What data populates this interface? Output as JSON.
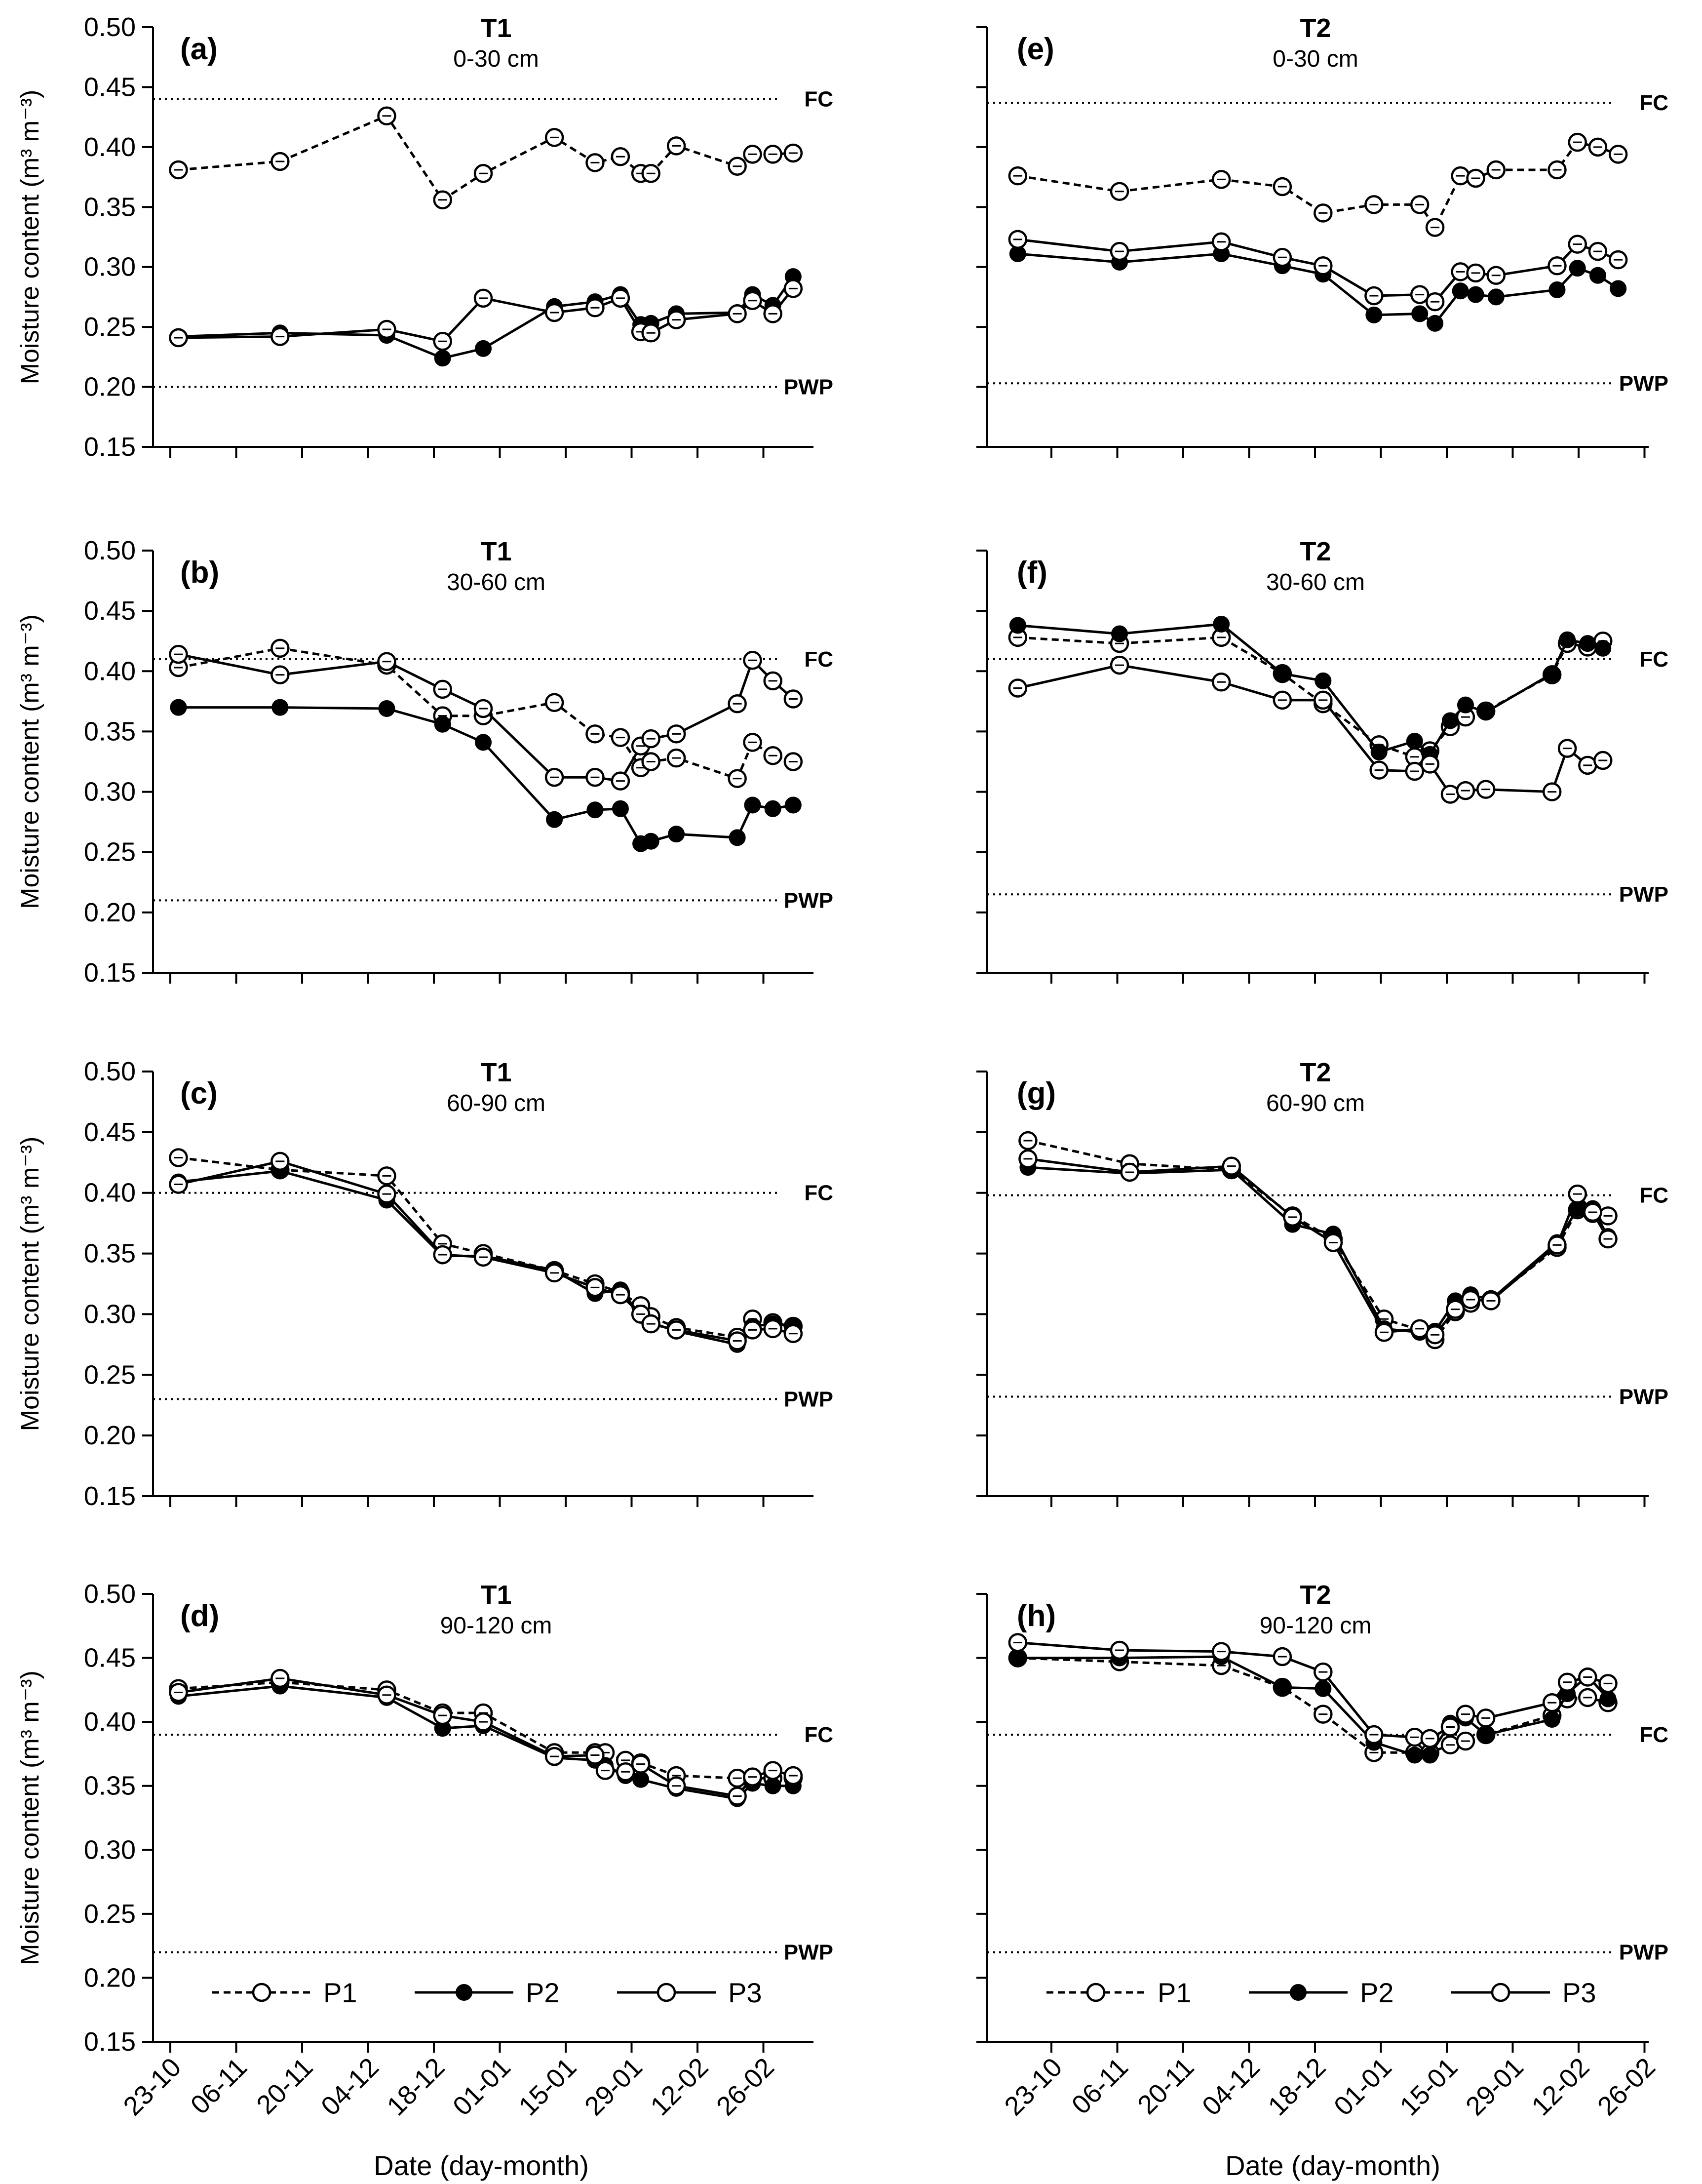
{
  "figure": {
    "y_axis_label": "Moisture content (m³ m⁻³)",
    "x_axis_label": "Date (day-month)",
    "y_ticks": [
      "0.15",
      "0.20",
      "0.25",
      "0.30",
      "0.35",
      "0.40",
      "0.45",
      "0.50"
    ],
    "x_ticks": [
      "23-10",
      "06-11",
      "20-11",
      "04-12",
      "18-12",
      "01-01",
      "15-01",
      "29-01",
      "12-02",
      "26-02"
    ],
    "legend": [
      {
        "name": "P1",
        "style": "dashed",
        "marker": "open"
      },
      {
        "name": "P2",
        "style": "solid",
        "marker": "filled"
      },
      {
        "name": "P3",
        "style": "solid",
        "marker": "open"
      }
    ]
  },
  "chart_data": [
    {
      "type": "line",
      "id": "a",
      "panel_label": "(a)",
      "title": "T1",
      "subtitle": "0-30 cm",
      "ylim": [
        0.15,
        0.5
      ],
      "fc": 0.44,
      "pwp": 0.2,
      "fc_label": "FC",
      "pwp_label": "PWP",
      "x": [
        5,
        25,
        46,
        57,
        65,
        79,
        87,
        92,
        96,
        98,
        103,
        115,
        118,
        122,
        126
      ],
      "series": [
        {
          "name": "P1",
          "values": [
            0.381,
            0.388,
            0.426,
            0.356,
            0.378,
            0.408,
            0.387,
            0.392,
            0.378,
            0.378,
            0.401,
            0.384,
            0.394,
            0.394,
            0.395
          ]
        },
        {
          "name": "P2",
          "values": [
            0.242,
            0.245,
            0.243,
            0.224,
            0.232,
            0.267,
            0.271,
            0.277,
            0.252,
            0.253,
            0.261,
            0.262,
            0.277,
            0.268,
            0.292
          ]
        },
        {
          "name": "P3",
          "values": [
            0.241,
            0.242,
            0.248,
            0.238,
            0.274,
            0.262,
            0.266,
            0.274,
            0.246,
            0.245,
            0.256,
            0.261,
            0.272,
            0.261,
            0.282
          ]
        }
      ]
    },
    {
      "type": "line",
      "id": "b",
      "panel_label": "(b)",
      "title": "T1",
      "subtitle": "30-60 cm",
      "ylim": [
        0.15,
        0.5
      ],
      "fc": 0.41,
      "pwp": 0.21,
      "fc_label": "FC",
      "pwp_label": "PWP",
      "x": [
        5,
        25,
        46,
        57,
        65,
        79,
        87,
        92,
        96,
        98,
        103,
        115,
        118,
        122,
        126
      ],
      "series": [
        {
          "name": "P1",
          "values": [
            0.403,
            0.419,
            0.405,
            0.363,
            0.363,
            0.374,
            0.348,
            0.345,
            0.32,
            0.325,
            0.328,
            0.311,
            0.341,
            0.33,
            0.325
          ]
        },
        {
          "name": "P2",
          "values": [
            0.37,
            0.37,
            0.369,
            0.356,
            0.341,
            0.277,
            0.285,
            0.286,
            0.257,
            0.259,
            0.265,
            0.262,
            0.289,
            0.286,
            0.289
          ]
        },
        {
          "name": "P3",
          "values": [
            0.414,
            0.397,
            0.408,
            0.385,
            0.369,
            0.312,
            0.312,
            0.309,
            0.338,
            0.344,
            0.348,
            0.373,
            0.409,
            0.392,
            0.377
          ]
        }
      ]
    },
    {
      "type": "line",
      "id": "c",
      "panel_label": "(c)",
      "title": "T1",
      "subtitle": "60-90 cm",
      "ylim": [
        0.15,
        0.5
      ],
      "fc": 0.4,
      "pwp": 0.23,
      "fc_label": "FC",
      "pwp_label": "PWP",
      "x": [
        5,
        25,
        46,
        57,
        65,
        79,
        87,
        92,
        96,
        98,
        103,
        115,
        118,
        122,
        126
      ],
      "series": [
        {
          "name": "P1",
          "values": [
            0.429,
            0.419,
            0.414,
            0.358,
            0.35,
            0.336,
            0.325,
            0.318,
            0.307,
            0.298,
            0.289,
            0.281,
            0.296,
            0.293,
            0.29
          ]
        },
        {
          "name": "P2",
          "values": [
            0.409,
            0.418,
            0.394,
            0.348,
            0.348,
            0.336,
            0.317,
            0.32,
            0.299,
            0.293,
            0.286,
            0.275,
            0.29,
            0.292,
            0.29
          ]
        },
        {
          "name": "P3",
          "values": [
            0.407,
            0.426,
            0.399,
            0.349,
            0.347,
            0.334,
            0.322,
            0.316,
            0.3,
            0.292,
            0.287,
            0.278,
            0.287,
            0.288,
            0.284
          ]
        }
      ]
    },
    {
      "type": "line",
      "id": "d",
      "panel_label": "(d)",
      "title": "T1",
      "subtitle": "90-120 cm",
      "ylim": [
        0.15,
        0.5
      ],
      "fc": 0.39,
      "pwp": 0.22,
      "fc_label": "FC",
      "pwp_label": "PWP",
      "x": [
        5,
        25,
        46,
        57,
        65,
        79,
        87,
        89,
        93,
        96,
        103,
        115,
        118,
        122,
        126
      ],
      "series": [
        {
          "name": "P1",
          "values": [
            0.426,
            0.431,
            0.425,
            0.407,
            0.407,
            0.376,
            0.376,
            0.376,
            0.37,
            0.368,
            0.358,
            0.356,
            0.356,
            0.356,
            0.356
          ]
        },
        {
          "name": "P2",
          "values": [
            0.42,
            0.428,
            0.419,
            0.395,
            0.397,
            0.372,
            0.37,
            0.366,
            0.358,
            0.355,
            0.348,
            0.34,
            0.352,
            0.35,
            0.35
          ]
        },
        {
          "name": "P3",
          "values": [
            0.423,
            0.434,
            0.421,
            0.405,
            0.4,
            0.373,
            0.374,
            0.362,
            0.361,
            0.367,
            0.35,
            0.342,
            0.357,
            0.362,
            0.358
          ]
        }
      ]
    },
    {
      "type": "line",
      "id": "e",
      "panel_label": "(e)",
      "title": "T2",
      "subtitle": "0-30 cm",
      "ylim": [
        0.15,
        0.5
      ],
      "fc": 0.437,
      "pwp": 0.203,
      "fc_label": "FC",
      "pwp_label": "PWP",
      "x": [
        6,
        26,
        46,
        58,
        66,
        76,
        85,
        88,
        93,
        96,
        100,
        112,
        116,
        120,
        124
      ],
      "series": [
        {
          "name": "P1",
          "values": [
            0.376,
            0.363,
            0.373,
            0.367,
            0.345,
            0.352,
            0.352,
            0.333,
            0.376,
            0.374,
            0.381,
            0.381,
            0.404,
            0.4,
            0.394
          ]
        },
        {
          "name": "P2",
          "values": [
            0.311,
            0.304,
            0.311,
            0.301,
            0.294,
            0.26,
            0.261,
            0.253,
            0.28,
            0.277,
            0.275,
            0.281,
            0.299,
            0.293,
            0.282
          ]
        },
        {
          "name": "P3",
          "values": [
            0.323,
            0.313,
            0.321,
            0.308,
            0.301,
            0.276,
            0.277,
            0.271,
            0.296,
            0.295,
            0.293,
            0.301,
            0.319,
            0.313,
            0.306
          ]
        }
      ]
    },
    {
      "type": "line",
      "id": "f",
      "panel_label": "(f)",
      "title": "T2",
      "subtitle": "30-60 cm",
      "ylim": [
        0.15,
        0.5
      ],
      "fc": 0.41,
      "pwp": 0.215,
      "fc_label": "FC",
      "pwp_label": "PWP",
      "x": [
        6,
        26,
        46,
        58,
        66,
        77,
        84,
        87,
        91,
        94,
        98,
        111,
        114,
        118,
        121
      ],
      "series": [
        {
          "name": "P1",
          "values": [
            0.428,
            0.423,
            0.428,
            0.398,
            0.373,
            0.339,
            0.329,
            0.334,
            0.354,
            0.362,
            0.367,
            0.397,
            0.423,
            0.42,
            0.425
          ]
        },
        {
          "name": "P2",
          "values": [
            0.438,
            0.431,
            0.439,
            0.398,
            0.392,
            0.333,
            0.342,
            0.331,
            0.359,
            0.372,
            0.366,
            0.398,
            0.426,
            0.423,
            0.419
          ]
        },
        {
          "name": "P3",
          "values": [
            0.386,
            0.405,
            0.391,
            0.376,
            0.376,
            0.318,
            0.317,
            0.323,
            0.298,
            0.301,
            0.302,
            0.3,
            0.336,
            0.322,
            0.326
          ]
        }
      ]
    },
    {
      "type": "line",
      "id": "g",
      "panel_label": "(g)",
      "title": "T2",
      "subtitle": "60-90 cm",
      "ylim": [
        0.15,
        0.5
      ],
      "fc": 0.398,
      "pwp": 0.232,
      "fc_label": "FC",
      "pwp_label": "PWP",
      "x": [
        8,
        28,
        48,
        60,
        68,
        78,
        85,
        88,
        92,
        95,
        99,
        112,
        116,
        119,
        122
      ],
      "series": [
        {
          "name": "P1",
          "values": [
            0.443,
            0.424,
            0.419,
            0.381,
            0.362,
            0.296,
            0.287,
            0.279,
            0.302,
            0.309,
            0.312,
            0.355,
            0.386,
            0.383,
            0.381
          ]
        },
        {
          "name": "P2",
          "values": [
            0.421,
            0.416,
            0.419,
            0.374,
            0.366,
            0.288,
            0.285,
            0.286,
            0.311,
            0.316,
            0.312,
            0.359,
            0.387,
            0.387,
            0.364
          ]
        },
        {
          "name": "P3",
          "values": [
            0.428,
            0.417,
            0.422,
            0.38,
            0.359,
            0.285,
            0.288,
            0.283,
            0.304,
            0.312,
            0.311,
            0.357,
            0.399,
            0.384,
            0.362
          ]
        }
      ]
    },
    {
      "type": "line",
      "id": "h",
      "panel_label": "(h)",
      "title": "T2",
      "subtitle": "90-120 cm",
      "ylim": [
        0.15,
        0.5
      ],
      "fc": 0.39,
      "pwp": 0.22,
      "fc_label": "FC",
      "pwp_label": "PWP",
      "x": [
        6,
        26,
        46,
        58,
        66,
        76,
        84,
        87,
        91,
        94,
        98,
        111,
        114,
        118,
        122
      ],
      "series": [
        {
          "name": "P1",
          "values": [
            0.45,
            0.447,
            0.444,
            0.427,
            0.406,
            0.376,
            0.376,
            0.376,
            0.382,
            0.385,
            0.39,
            0.405,
            0.418,
            0.419,
            0.415
          ]
        },
        {
          "name": "P2",
          "values": [
            0.45,
            0.45,
            0.451,
            0.427,
            0.426,
            0.384,
            0.374,
            0.374,
            0.399,
            0.403,
            0.39,
            0.402,
            0.422,
            0.436,
            0.418
          ]
        },
        {
          "name": "P3",
          "values": [
            0.462,
            0.456,
            0.455,
            0.451,
            0.439,
            0.39,
            0.388,
            0.387,
            0.396,
            0.406,
            0.403,
            0.415,
            0.431,
            0.435,
            0.43
          ]
        }
      ]
    }
  ]
}
